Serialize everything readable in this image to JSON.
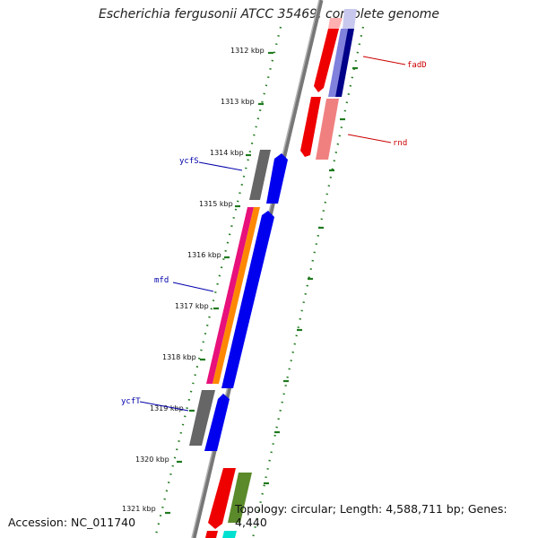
{
  "title": "Escherichia fergusonii ATCC 35469, complete genome",
  "footer": {
    "accession": "Accession: NC_011740",
    "summary": "Topology: circular; Length: 4,588,711 bp; Genes: 4,440"
  },
  "scale_labels": [
    "1312 kbp",
    "1313 kbp",
    "1314 kbp",
    "1315 kbp",
    "1316 kbp",
    "1317 kbp",
    "1318 kbp",
    "1319 kbp",
    "1320 kbp",
    "1321 kbp"
  ],
  "gene_labels": [
    {
      "name": "fadD",
      "color": "#cc0000"
    },
    {
      "name": "rnd",
      "color": "#cc0000"
    },
    {
      "name": "ycfS",
      "color": "#0000aa"
    },
    {
      "name": "mfd",
      "color": "#0000aa"
    },
    {
      "name": "ycfT",
      "color": "#0000aa"
    }
  ],
  "colors": {
    "backbone": "#8a8a8a",
    "ticks": "#1f7a1f",
    "forward_cds": "#0000ee",
    "reverse_cds": "#ee0000",
    "gene_gray": "#666666"
  }
}
